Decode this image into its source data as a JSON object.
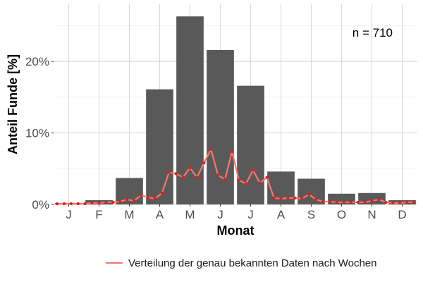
{
  "chart_data": {
    "type": "bar",
    "xlabel": "Monat",
    "ylabel": "Anteil Funde [%]",
    "categories": [
      "J",
      "F",
      "M",
      "A",
      "M",
      "J",
      "J",
      "A",
      "S",
      "O",
      "N",
      "D"
    ],
    "y_ticks": [
      "0%",
      "10%",
      "20%"
    ],
    "ylim": [
      0,
      28
    ],
    "grid": true,
    "bars": {
      "values": [
        0.2,
        0.6,
        3.7,
        16.1,
        26.3,
        21.6,
        16.6,
        4.6,
        3.6,
        1.5,
        1.6,
        0.6
      ],
      "color": "#595959"
    },
    "series": [
      {
        "name": "Verteilung der genau bekannten Daten nach Wochen",
        "color": "#f8766d",
        "point_color": "#e41a1c",
        "x": [
          1,
          2,
          3,
          4,
          5,
          6,
          7,
          8,
          9,
          10,
          11,
          12,
          13,
          14,
          15,
          16,
          17,
          18,
          19,
          20,
          21,
          22,
          23,
          24,
          25,
          26,
          27,
          28,
          29,
          30,
          31,
          32,
          33,
          34,
          35,
          36,
          37,
          38,
          39,
          40,
          41,
          42,
          43,
          44,
          45,
          46,
          47,
          48,
          49,
          50,
          51,
          52
        ],
        "values": [
          0.1,
          0.1,
          0.1,
          0.1,
          0.1,
          0.2,
          0.2,
          0.3,
          0.3,
          0.4,
          0.7,
          0.5,
          1.3,
          1.0,
          0.8,
          1.6,
          4.5,
          4.3,
          3.8,
          5.1,
          3.8,
          5.8,
          7.7,
          4.1,
          3.5,
          7.4,
          3.4,
          2.9,
          4.8,
          3.0,
          3.8,
          0.9,
          0.8,
          0.9,
          0.9,
          0.8,
          1.4,
          0.7,
          0.4,
          0.4,
          0.3,
          0.3,
          0.3,
          0.3,
          0.3,
          0.5,
          0.7,
          0.3,
          0.2,
          0.2,
          0.3,
          0.3
        ]
      }
    ],
    "annotation": "n = 710",
    "legend_position": "bottom-right"
  }
}
